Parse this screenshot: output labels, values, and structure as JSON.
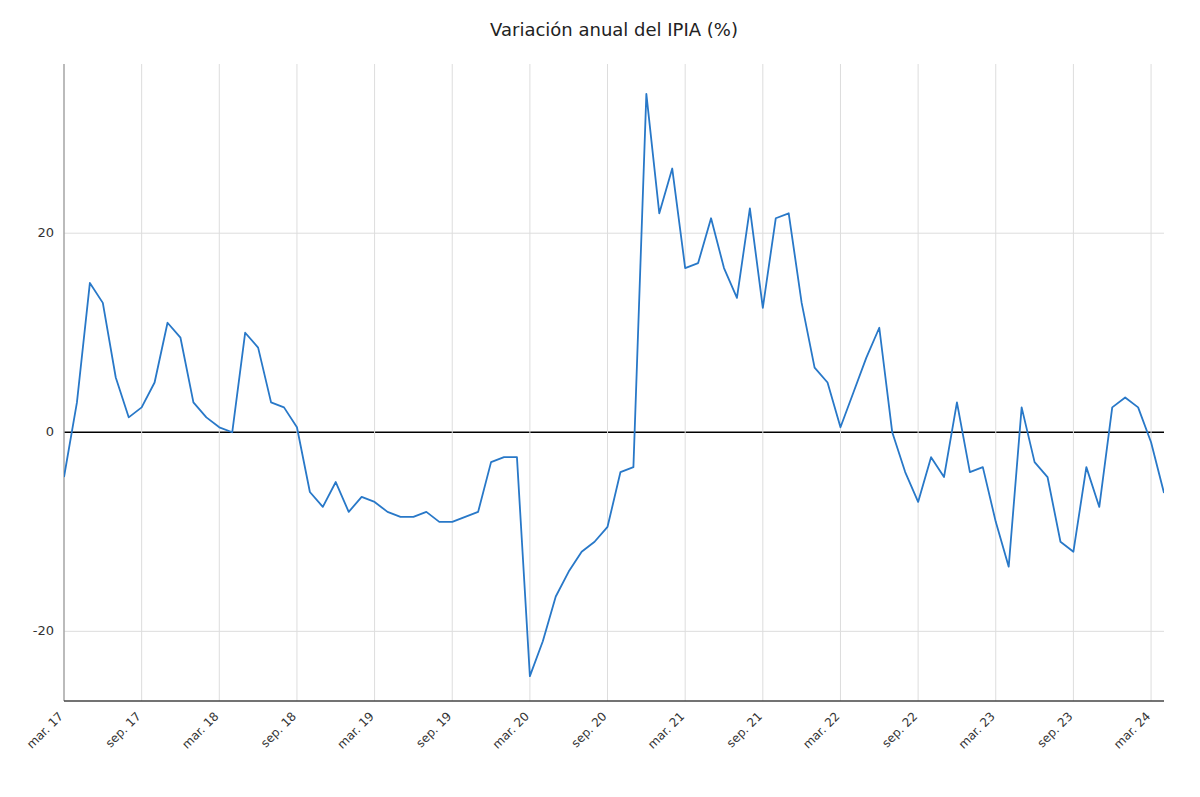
{
  "chart_data": {
    "type": "line",
    "title": "Variación anual del IPIA (%)",
    "categories": [
      "mar. 17",
      null,
      null,
      null,
      null,
      null,
      "sep. 17",
      null,
      null,
      null,
      null,
      null,
      "mar. 18",
      null,
      null,
      null,
      null,
      null,
      "sep. 18",
      null,
      null,
      null,
      null,
      null,
      "mar. 19",
      null,
      null,
      null,
      null,
      null,
      "sep. 19",
      null,
      null,
      null,
      null,
      null,
      "mar. 20",
      null,
      null,
      null,
      null,
      null,
      "sep. 20",
      null,
      null,
      null,
      null,
      null,
      "mar. 21",
      null,
      null,
      null,
      null,
      null,
      "sep. 21",
      null,
      null,
      null,
      null,
      null,
      "mar. 22",
      null,
      null,
      null,
      null,
      null,
      "sep. 22",
      null,
      null,
      null,
      null,
      null,
      "mar. 23",
      null,
      null,
      null,
      null,
      null,
      "sep. 23",
      null,
      null,
      null,
      null,
      null,
      "mar. 24",
      null
    ],
    "values": [
      -4.5,
      3.0,
      15.0,
      13.0,
      5.5,
      1.5,
      2.5,
      5.0,
      11.0,
      9.5,
      3.0,
      1.5,
      0.5,
      0.0,
      10.0,
      8.5,
      3.0,
      2.5,
      0.5,
      -6.0,
      -7.5,
      -5.0,
      -8.0,
      -6.5,
      -7.0,
      -8.0,
      -8.5,
      -8.5,
      -8.0,
      -9.0,
      -9.0,
      -8.5,
      -8.0,
      -3.0,
      -2.5,
      -2.5,
      -24.5,
      -21.0,
      -16.5,
      -14.0,
      -12.0,
      -11.0,
      -9.5,
      -4.0,
      -3.5,
      34.0,
      22.0,
      26.5,
      16.5,
      17.0,
      21.5,
      16.5,
      13.5,
      22.5,
      12.5,
      21.5,
      22.0,
      13.0,
      6.5,
      5.0,
      0.5,
      4.0,
      7.5,
      10.5,
      0.0,
      -4.0,
      -7.0,
      -2.5,
      -4.5,
      3.0,
      -4.0,
      -3.5,
      -9.0,
      -13.5,
      2.5,
      -3.0,
      -4.5,
      -11.0,
      -12.0,
      -3.5,
      -7.5,
      2.5,
      3.5,
      2.5,
      -1.0,
      -6.1
    ],
    "color": "#2878c8",
    "ylim": [
      -27,
      37
    ],
    "yticks": [
      -20,
      0,
      20
    ],
    "grid": true
  }
}
